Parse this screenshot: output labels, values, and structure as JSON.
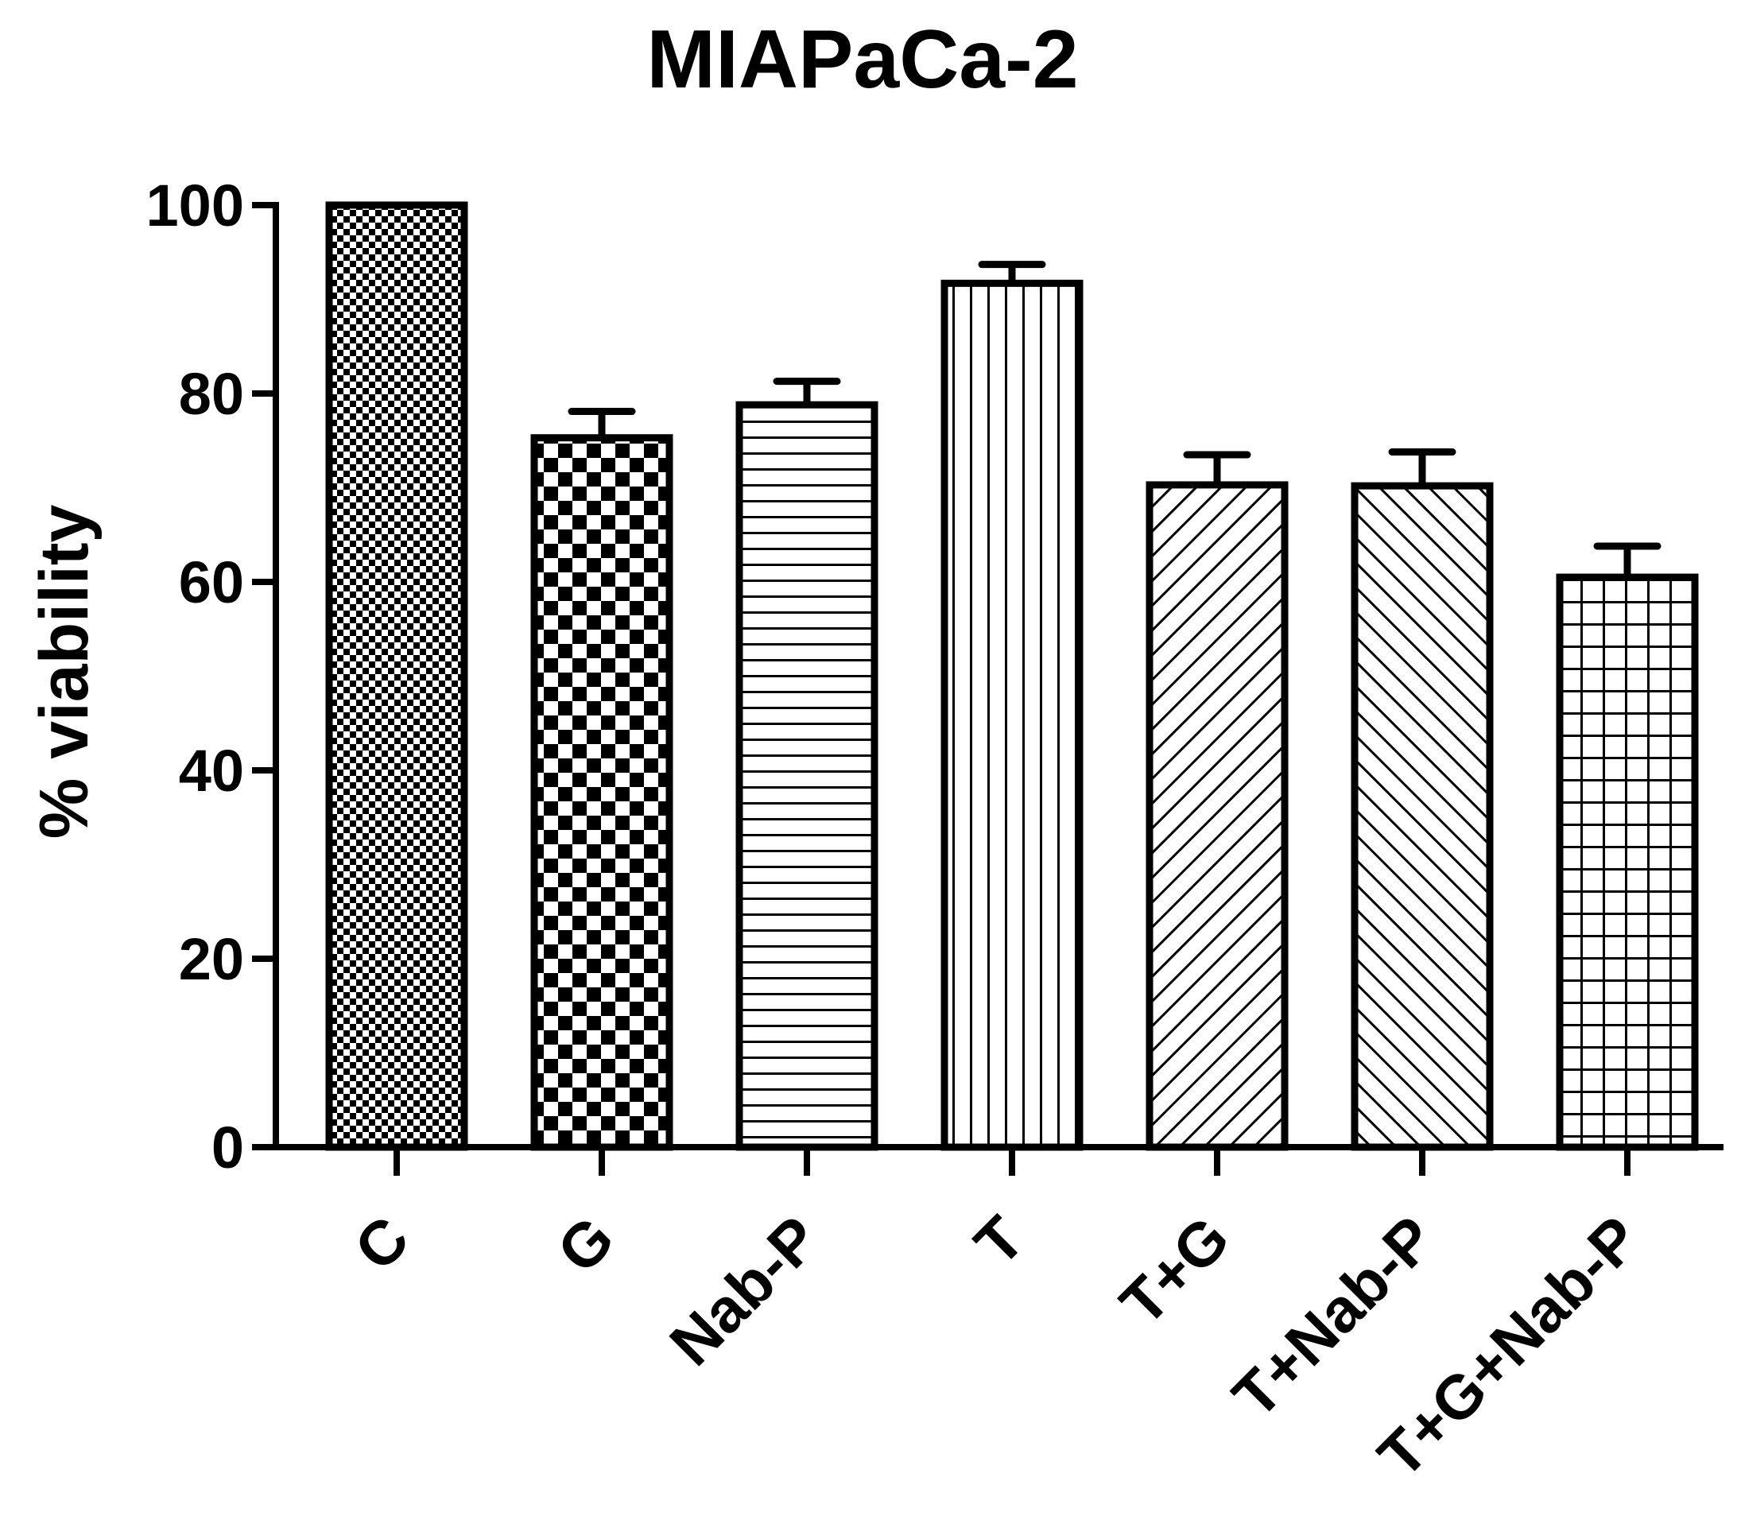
{
  "chart_data": {
    "type": "bar",
    "title": "MIAPaCa-2",
    "xlabel": "",
    "ylabel": "% viability",
    "ylim": [
      0,
      100
    ],
    "yticks": [
      0,
      20,
      40,
      60,
      80,
      100
    ],
    "categories": [
      "C",
      "G",
      "Nab-P",
      "T",
      "T+G",
      "T+Nab-P",
      "T+G+Nab-P"
    ],
    "values": [
      100,
      75.3,
      78.8,
      91.7,
      70.3,
      70.2,
      60.5
    ],
    "errors": [
      0,
      2.8,
      2.5,
      2.0,
      3.2,
      3.6,
      3.3
    ],
    "patterns": [
      "fine-checker",
      "coarse-checker",
      "horizontal-lines",
      "vertical-lines",
      "diagonal-right",
      "diagonal-left",
      "grid"
    ],
    "colors": {
      "stroke": "#000000",
      "fill": "#ffffff"
    },
    "grid": false,
    "legend": "none"
  }
}
